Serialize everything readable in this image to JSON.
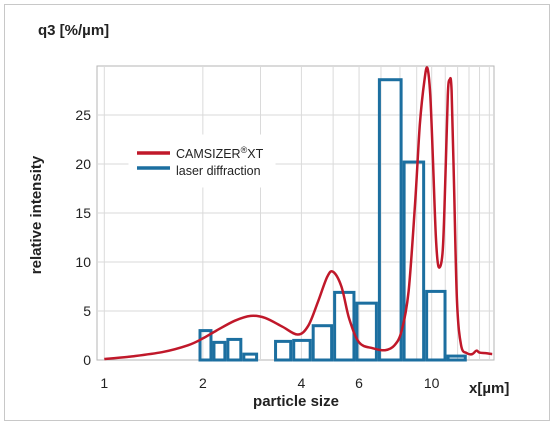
{
  "chart_data": {
    "type": "bar+line",
    "title": "",
    "ylabel_top": "q3 [%/µm]",
    "ylabel": "relative intensity",
    "xlabel": "particle size",
    "xunit_label": "x[µm]",
    "x_scale": "log",
    "xlim": [
      0.95,
      15.5
    ],
    "ylim": [
      0,
      30
    ],
    "grid": true,
    "legend_position": "upper-left-inside",
    "x_ticks": [
      {
        "value": 1,
        "label": "1"
      },
      {
        "value": 2,
        "label": "2"
      },
      {
        "value": 4,
        "label": "4"
      },
      {
        "value": 6,
        "label": "6"
      },
      {
        "value": 10,
        "label": "10"
      }
    ],
    "x_minor_ticks": [
      3,
      5,
      7,
      8,
      9,
      11,
      12,
      13,
      14,
      15
    ],
    "y_ticks": [
      {
        "value": 0,
        "label": "0"
      },
      {
        "value": 5,
        "label": "5"
      },
      {
        "value": 10,
        "label": "10"
      },
      {
        "value": 15,
        "label": "15"
      },
      {
        "value": 20,
        "label": "20"
      },
      {
        "value": 25,
        "label": "25"
      }
    ],
    "series": [
      {
        "name": "CAMSIZER®XT",
        "name_main": "CAMSIZER",
        "name_sup": "®",
        "name_tail": "XT",
        "kind": "line",
        "color": "#c0182a",
        "points": [
          [
            1.0,
            0.1
          ],
          [
            1.2,
            0.35
          ],
          [
            1.5,
            0.8
          ],
          [
            1.8,
            1.5
          ],
          [
            2.0,
            2.2
          ],
          [
            2.2,
            3.0
          ],
          [
            2.5,
            4.0
          ],
          [
            2.8,
            4.5
          ],
          [
            3.1,
            4.3
          ],
          [
            3.5,
            3.4
          ],
          [
            3.9,
            2.6
          ],
          [
            4.2,
            3.5
          ],
          [
            4.5,
            6.0
          ],
          [
            4.8,
            8.5
          ],
          [
            5.0,
            9.0
          ],
          [
            5.3,
            7.5
          ],
          [
            5.6,
            4.2
          ],
          [
            6.0,
            1.8
          ],
          [
            6.6,
            1.2
          ],
          [
            7.2,
            1.0
          ],
          [
            7.7,
            1.5
          ],
          [
            8.1,
            3.0
          ],
          [
            8.5,
            7.0
          ],
          [
            8.9,
            16.0
          ],
          [
            9.2,
            24.0
          ],
          [
            9.5,
            28.5
          ],
          [
            9.7,
            29.8
          ],
          [
            9.9,
            27.0
          ],
          [
            10.1,
            20.0
          ],
          [
            10.3,
            12.5
          ],
          [
            10.5,
            9.5
          ],
          [
            10.8,
            11.0
          ],
          [
            11.0,
            18.0
          ],
          [
            11.2,
            27.0
          ],
          [
            11.35,
            28.6
          ],
          [
            11.5,
            27.5
          ],
          [
            11.7,
            18.0
          ],
          [
            11.95,
            6.0
          ],
          [
            12.3,
            1.5
          ],
          [
            12.8,
            0.7
          ],
          [
            13.3,
            0.6
          ],
          [
            13.7,
            0.95
          ],
          [
            14.0,
            0.75
          ],
          [
            14.6,
            0.7
          ],
          [
            15.3,
            0.6
          ]
        ]
      },
      {
        "name": "laser diffraction",
        "kind": "histogram",
        "color": "#1c6fa0",
        "bins": [
          {
            "x0": 1.94,
            "x1": 2.14,
            "y": 3.0
          },
          {
            "x0": 2.14,
            "x1": 2.36,
            "y": 1.8
          },
          {
            "x0": 2.36,
            "x1": 2.64,
            "y": 2.1
          },
          {
            "x0": 2.64,
            "x1": 2.95,
            "y": 0.6
          },
          {
            "x0": 3.3,
            "x1": 3.75,
            "y": 1.9
          },
          {
            "x0": 3.75,
            "x1": 4.3,
            "y": 2.0
          },
          {
            "x0": 4.3,
            "x1": 5.0,
            "y": 3.5
          },
          {
            "x0": 5.0,
            "x1": 5.85,
            "y": 6.9
          },
          {
            "x0": 5.85,
            "x1": 6.85,
            "y": 5.8
          },
          {
            "x0": 6.85,
            "x1": 8.15,
            "y": 28.6
          },
          {
            "x0": 8.15,
            "x1": 9.55,
            "y": 20.2
          },
          {
            "x0": 9.55,
            "x1": 11.1,
            "y": 7.0
          },
          {
            "x0": 11.1,
            "x1": 12.8,
            "y": 0.4
          }
        ]
      }
    ]
  }
}
